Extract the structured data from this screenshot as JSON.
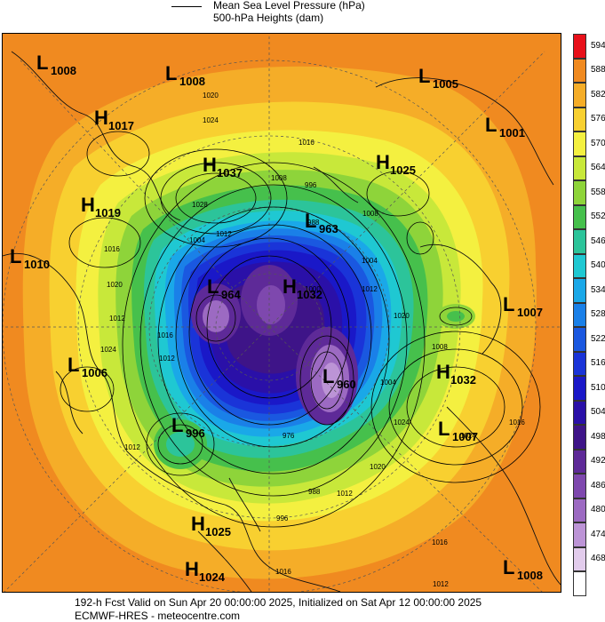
{
  "legend": {
    "mslp_label": "Mean Sea Level Pressure (hPa)",
    "heights_label": "500-hPa Heights (dam)"
  },
  "colorbar": {
    "levels": [
      {
        "value": "594",
        "color": "#e8101a"
      },
      {
        "value": "588",
        "color": "#f08a20"
      },
      {
        "value": "582",
        "color": "#f5ad28"
      },
      {
        "value": "576",
        "color": "#f8d030"
      },
      {
        "value": "570",
        "color": "#f4f040"
      },
      {
        "value": "564",
        "color": "#c8e83a"
      },
      {
        "value": "558",
        "color": "#8ed43a"
      },
      {
        "value": "552",
        "color": "#46c04c"
      },
      {
        "value": "546",
        "color": "#2cc49a"
      },
      {
        "value": "540",
        "color": "#1fc8d2"
      },
      {
        "value": "534",
        "color": "#1aa8e8"
      },
      {
        "value": "528",
        "color": "#1a80e8"
      },
      {
        "value": "522",
        "color": "#1a58e0"
      },
      {
        "value": "516",
        "color": "#1a34d8"
      },
      {
        "value": "510",
        "color": "#1a18c8"
      },
      {
        "value": "504",
        "color": "#2a10a8"
      },
      {
        "value": "498",
        "color": "#3e1488"
      },
      {
        "value": "492",
        "color": "#5e2a98"
      },
      {
        "value": "486",
        "color": "#7e48ae"
      },
      {
        "value": "480",
        "color": "#9c6ac2"
      },
      {
        "value": "474",
        "color": "#bc94d6"
      },
      {
        "value": "468",
        "color": "#e2ccec"
      },
      {
        "value": "",
        "color": "#ffffff"
      }
    ]
  },
  "pressure_systems": [
    {
      "type": "L",
      "value": "1008"
    },
    {
      "type": "L",
      "value": "1008"
    },
    {
      "type": "L",
      "value": "1005"
    },
    {
      "type": "H",
      "value": "1017"
    },
    {
      "type": "L",
      "value": "1001"
    },
    {
      "type": "H",
      "value": "1037"
    },
    {
      "type": "H",
      "value": "1025"
    },
    {
      "type": "H",
      "value": "1019"
    },
    {
      "type": "L",
      "value": "963"
    },
    {
      "type": "L",
      "value": "1010"
    },
    {
      "type": "L",
      "value": "964"
    },
    {
      "type": "H",
      "value": "1032"
    },
    {
      "type": "L",
      "value": "1007"
    },
    {
      "type": "L",
      "value": "1006"
    },
    {
      "type": "L",
      "value": "960"
    },
    {
      "type": "H",
      "value": "1032"
    },
    {
      "type": "L",
      "value": "996"
    },
    {
      "type": "L",
      "value": "1007"
    },
    {
      "type": "H",
      "value": "1025"
    },
    {
      "type": "H",
      "value": "1024"
    },
    {
      "type": "L",
      "value": "1008"
    }
  ],
  "isobar_labels": [
    "1020",
    "1024",
    "1016",
    "1028",
    "1008",
    "1004",
    "1012",
    "996",
    "988",
    "1000",
    "976",
    "1020",
    "1016",
    "1012",
    "1024",
    "1016",
    "1012",
    "1008",
    "1004",
    "1012",
    "1020",
    "1024",
    "1016",
    "1008",
    "1004",
    "996",
    "988",
    "1012",
    "1020",
    "1024",
    "1016",
    "1012",
    "1016",
    "1012"
  ],
  "footer": {
    "line1": "192-h Fcst Valid on Sun Apr 20 00:00:00 2025, Initialized on Sat Apr 12 00:00:00 2025",
    "line2": "ECMWF-HRES  - meteocentre.com"
  }
}
